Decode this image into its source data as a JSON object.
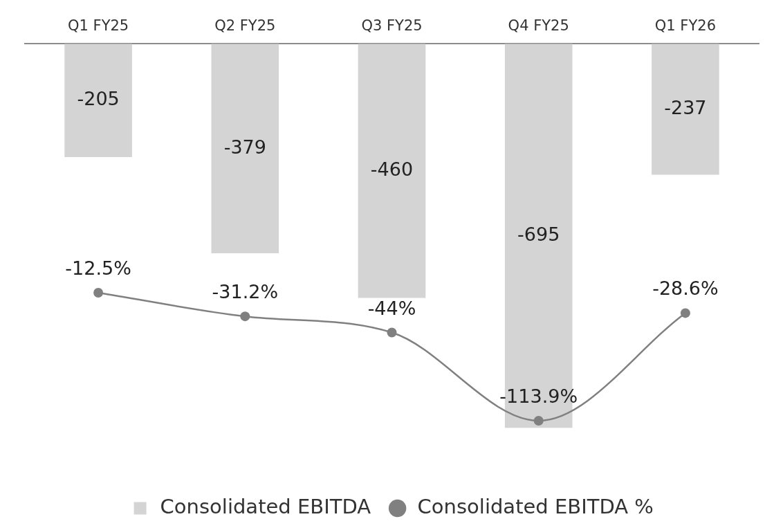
{
  "chart_data": {
    "type": "bar",
    "categories": [
      "Q1 FY25",
      "Q2 FY25",
      "Q3 FY25",
      "Q4 FY25",
      "Q1 FY26"
    ],
    "series": [
      {
        "name": "Consolidated EBITDA",
        "color": "#d4d4d4",
        "values": [
          -205,
          -379,
          -460,
          -695,
          -237
        ],
        "value_labels": [
          "-205",
          "-379",
          "-460",
          "-695",
          "-237"
        ]
      },
      {
        "name": "Consolidated EBITDA %",
        "type": "line",
        "axis": "y2",
        "color": "#808080",
        "values": [
          -12.5,
          -31.2,
          -44,
          -113.9,
          -28.6
        ],
        "value_labels": [
          "-12.5%",
          "-31.2%",
          "-44%",
          "-113.9%",
          "-28.6%"
        ]
      }
    ],
    "grid": false,
    "legend": "bottom",
    "tick_labels": "x",
    "marker": "circle",
    "line_style": "solid"
  }
}
